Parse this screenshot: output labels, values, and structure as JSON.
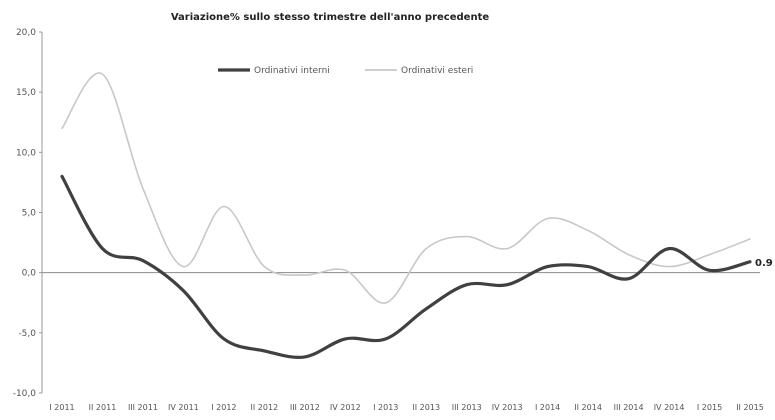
{
  "chart_data": {
    "type": "line",
    "title": "Variazione% sullo stesso trimestre dell'anno precedente",
    "xlabel": "",
    "ylabel": "",
    "ylim": [
      -10.0,
      20.0
    ],
    "y_ticks": [
      "20,0",
      "15,0",
      "10,0",
      "5,0",
      "0,0",
      "-5,0",
      "-10,0"
    ],
    "y_tick_values": [
      20,
      15,
      10,
      5,
      0,
      -5,
      -10
    ],
    "categories": [
      "I 2011",
      "II 2011",
      "III 2011",
      "IV 2011",
      "I 2012",
      "II 2012",
      "III 2012",
      "IV 2012",
      "I 2013",
      "II 2013",
      "III 2013",
      "IV 2013",
      "I 2014",
      "II 2014",
      "III 2014",
      "IV 2014",
      "I 2015",
      "II 2015"
    ],
    "grid": false,
    "legend_position": "top-right",
    "series": [
      {
        "name": "Ordinativi interni",
        "color": "#404040",
        "values": [
          8.0,
          2.0,
          1.0,
          -1.5,
          -5.5,
          -6.5,
          -7.0,
          -5.5,
          -5.5,
          -3.0,
          -1.0,
          -1.0,
          0.5,
          0.5,
          -0.5,
          2.0,
          0.2,
          0.9
        ]
      },
      {
        "name": "Ordinativi esteri",
        "color": "#c8c8c8",
        "values": [
          12.0,
          16.5,
          7.0,
          0.5,
          5.5,
          0.5,
          -0.2,
          0.2,
          -2.5,
          2.0,
          3.0,
          2.0,
          4.5,
          3.5,
          1.5,
          0.5,
          1.5,
          2.8
        ]
      }
    ],
    "data_labels": [
      {
        "text": "0.9",
        "series": 0,
        "index": 17
      }
    ]
  }
}
